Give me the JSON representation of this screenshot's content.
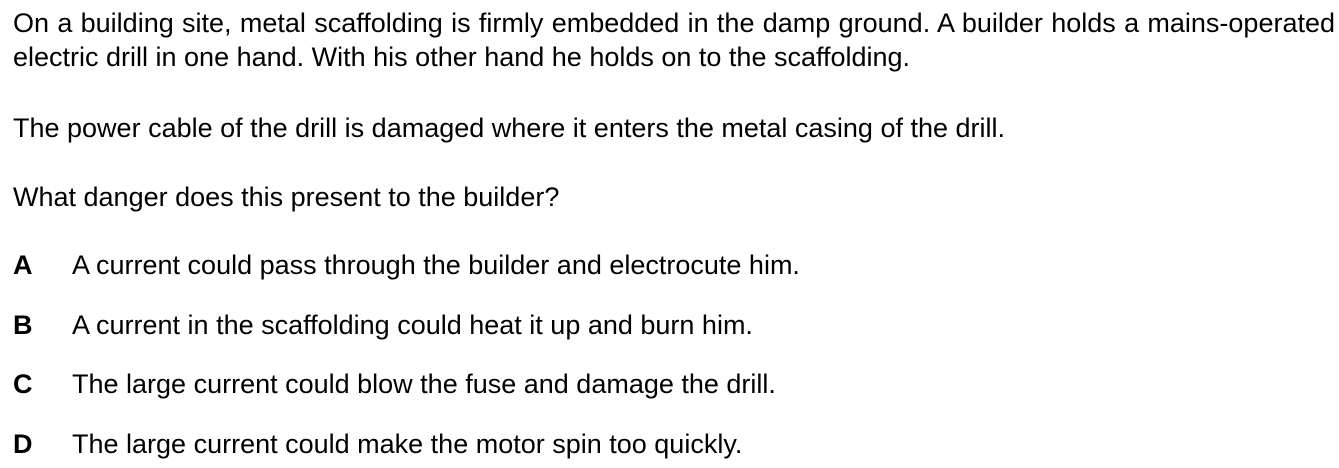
{
  "question": {
    "paragraph1": "On a building site, metal scaffolding is firmly embedded in the damp ground. A builder holds a mains-operated electric drill in one hand. With his other hand he holds on to the scaffolding.",
    "paragraph2": "The power cable of the drill is damaged where it enters the metal casing of the drill.",
    "prompt": "What danger does this present to the builder?"
  },
  "options": [
    {
      "letter": "A",
      "text": "A current could pass through the builder and electrocute him."
    },
    {
      "letter": "B",
      "text": "A current in the scaffolding could heat it up and burn him."
    },
    {
      "letter": "C",
      "text": "The large current could blow the fuse and damage the drill."
    },
    {
      "letter": "D",
      "text": "The large current could make the motor spin too quickly."
    }
  ]
}
